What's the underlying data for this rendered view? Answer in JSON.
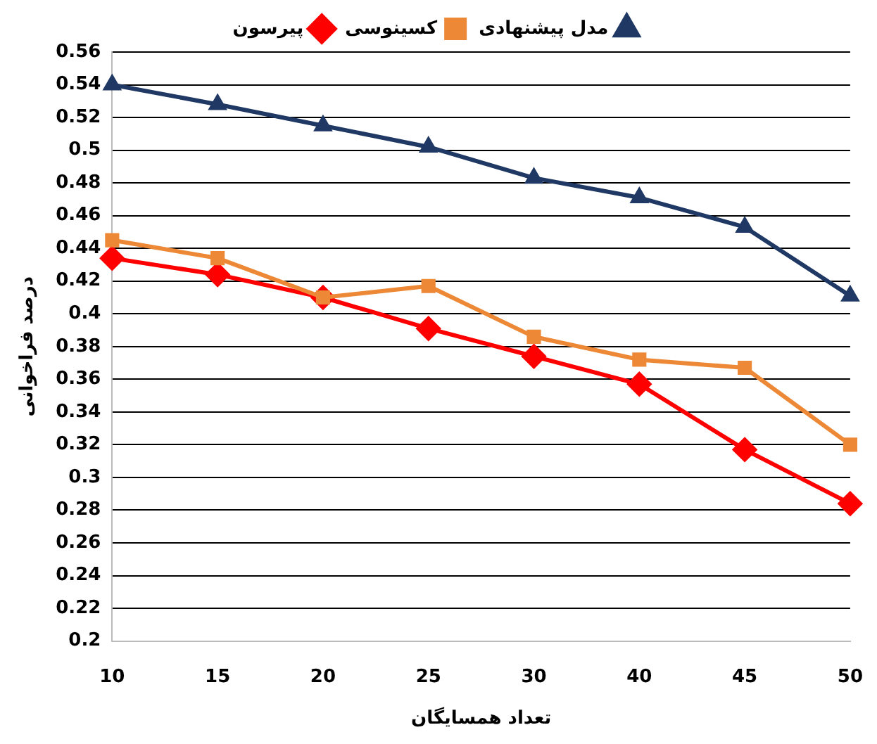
{
  "chart_data": {
    "type": "line",
    "xlabel": "تعداد همسایگان",
    "ylabel": "درصد فراخوانی",
    "categories": [
      "10",
      "15",
      "20",
      "25",
      "30",
      "40",
      "45",
      "50"
    ],
    "series": [
      {
        "name": "مدل پیشنهادی",
        "color": "#1f3864",
        "marker": "triangle",
        "values": [
          0.54,
          0.528,
          0.515,
          0.502,
          0.483,
          0.471,
          0.453,
          0.411
        ]
      },
      {
        "name": "کسینوسی",
        "color": "#ed8936",
        "marker": "square",
        "values": [
          0.445,
          0.434,
          0.41,
          0.417,
          0.386,
          0.372,
          0.367,
          0.32
        ]
      },
      {
        "name": "پیرسون",
        "color": "#ff0000",
        "marker": "diamond",
        "values": [
          0.434,
          0.424,
          0.41,
          0.391,
          0.374,
          0.357,
          0.317,
          0.284
        ]
      }
    ],
    "ylim": [
      0.2,
      0.56
    ],
    "yticks": [
      0.2,
      0.22,
      0.24,
      0.26,
      0.28,
      0.3,
      0.32,
      0.34,
      0.36,
      0.38,
      0.4,
      0.42,
      0.44,
      0.46,
      0.48,
      0.5,
      0.52,
      0.54,
      0.56
    ],
    "grid": "y",
    "legend": "top"
  }
}
